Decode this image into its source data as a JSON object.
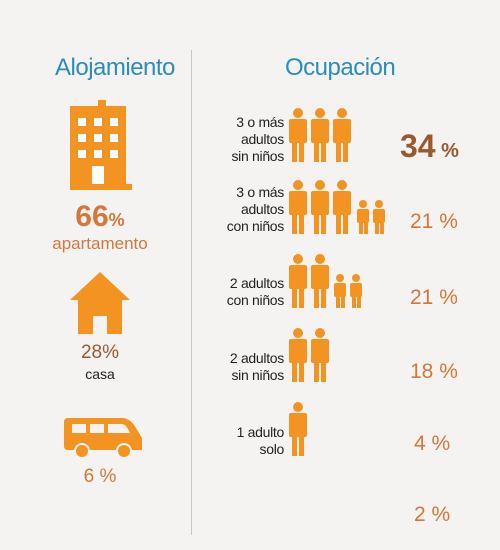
{
  "headings": {
    "left": "Alojamiento",
    "right": "Ocupación"
  },
  "colors": {
    "orange": "#f39322",
    "heading_blue": "#2e8cb8",
    "pct_orange": "#d5773a",
    "pct_brown": "#9a5a2e"
  },
  "accommodation": [
    {
      "icon": "building-icon",
      "value": "66",
      "unit": "%",
      "label": "apartamento"
    },
    {
      "icon": "house-icon",
      "value": "28%",
      "label": "casa"
    },
    {
      "icon": "van-icon",
      "value": "6 %",
      "label": ""
    }
  ],
  "occupancy": [
    {
      "label": [
        "3 o más",
        "adultos",
        "sin niños"
      ],
      "adults": 3,
      "children": 0,
      "value": "34",
      "unit": "%"
    },
    {
      "label": [
        "3 o más",
        "adultos",
        "con niños"
      ],
      "adults": 3,
      "children": 2,
      "value": "21 %"
    },
    {
      "label": [
        "2 adultos",
        "con niños"
      ],
      "adults": 2,
      "children": 2,
      "value": "21 %"
    },
    {
      "label": [
        "2 adultos",
        "sin niños"
      ],
      "adults": 2,
      "children": 0,
      "value": "18 %"
    },
    {
      "label": [
        "1 adulto",
        "solo"
      ],
      "adults": 1,
      "children": 0,
      "value": "4 %"
    },
    {
      "label": [],
      "adults": 0,
      "children": 0,
      "value": "2 %"
    }
  ]
}
